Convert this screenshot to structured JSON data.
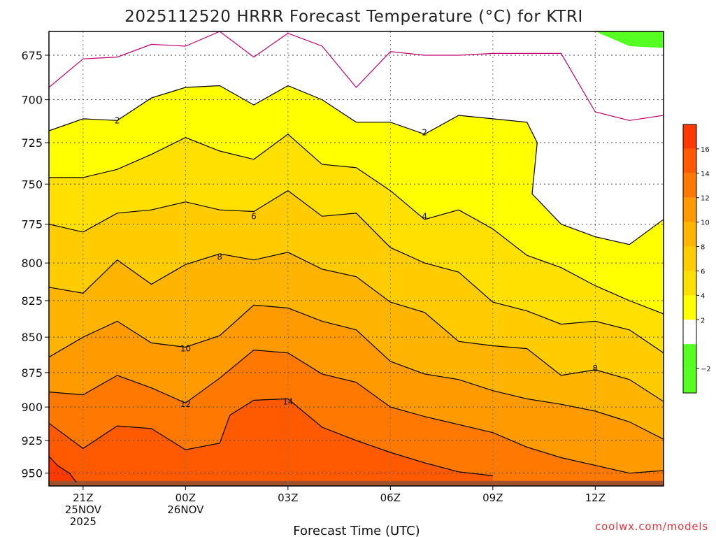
{
  "chart_data": {
    "type": "contour",
    "title": "2025112520 HRRR Forecast Temperature (°C) for KTRI",
    "xlabel": "Forecast Time (UTC)",
    "ylabel": "",
    "y_scale": "pressure",
    "ylim": [
      960,
      662
    ],
    "y_ticks": [
      675,
      700,
      725,
      750,
      775,
      800,
      825,
      850,
      875,
      900,
      925,
      950
    ],
    "y_tick_labels": [
      "675",
      "700",
      "725",
      "750",
      "775",
      "800",
      "825",
      "850",
      "875",
      "900",
      "925",
      "950"
    ],
    "x_ticks": [
      {
        "hour": 1,
        "label": [
          "21Z",
          "25NOV",
          "2025"
        ]
      },
      {
        "hour": 4,
        "label": [
          "00Z",
          "26NOV"
        ]
      },
      {
        "hour": 7,
        "label": [
          "03Z"
        ]
      },
      {
        "hour": 10,
        "label": [
          "06Z"
        ]
      },
      {
        "hour": 13,
        "label": [
          "09Z"
        ]
      },
      {
        "hour": 16,
        "label": [
          "12Z"
        ]
      }
    ],
    "xlim": [
      0,
      18
    ],
    "colorbar": {
      "bands": [
        {
          "min": -4,
          "max": -2,
          "color": "#55ff22"
        },
        {
          "min": -2,
          "max": 0,
          "color": "#55ff22"
        },
        {
          "min": 0,
          "max": 2,
          "color": "#ffffff"
        },
        {
          "min": 2,
          "max": 4,
          "color": "#ffff00"
        },
        {
          "min": 4,
          "max": 6,
          "color": "#ffe000"
        },
        {
          "min": 6,
          "max": 8,
          "color": "#ffcc00"
        },
        {
          "min": 8,
          "max": 10,
          "color": "#ffb400"
        },
        {
          "min": 10,
          "max": 12,
          "color": "#ff9a00"
        },
        {
          "min": 12,
          "max": 14,
          "color": "#ff7800"
        },
        {
          "min": 14,
          "max": 16,
          "color": "#ff5a00"
        },
        {
          "min": 16,
          "max": 18,
          "color": "#ff3a00"
        }
      ],
      "labels": [
        "−2",
        "2",
        "4",
        "6",
        "8",
        "10",
        "12",
        "14",
        "16"
      ],
      "label_values": [
        -2,
        2,
        4,
        6,
        8,
        10,
        12,
        14,
        16
      ]
    },
    "contour_labels": [
      {
        "text": "2",
        "hour": 2.0,
        "p": 712
      },
      {
        "text": "2",
        "hour": 11.0,
        "p": 719
      },
      {
        "text": "4",
        "hour": 11.0,
        "p": 770
      },
      {
        "text": "6",
        "hour": 6.0,
        "p": 770
      },
      {
        "text": "8",
        "hour": 5.0,
        "p": 796
      },
      {
        "text": "8",
        "hour": 16.0,
        "p": 872
      },
      {
        "text": "10",
        "hour": 4.0,
        "p": 858
      },
      {
        "text": "12",
        "hour": 4.0,
        "p": 898
      },
      {
        "text": "14",
        "hour": 7.0,
        "p": 896
      }
    ],
    "isotherms": [
      {
        "value": 0,
        "color": "#c00070",
        "points": [
          [
            0,
            693
          ],
          [
            1,
            677
          ],
          [
            2,
            676
          ],
          [
            3,
            669
          ],
          [
            4,
            670
          ],
          [
            5,
            662
          ],
          [
            6,
            676
          ],
          [
            7,
            663
          ],
          [
            8,
            670
          ],
          [
            9,
            693
          ],
          [
            10,
            673
          ],
          [
            11,
            675
          ],
          [
            12,
            675
          ],
          [
            13,
            674
          ],
          [
            14,
            674
          ],
          [
            15,
            674
          ],
          [
            16,
            707
          ],
          [
            17,
            712
          ],
          [
            18,
            709
          ]
        ]
      },
      {
        "value": 2,
        "color": "#000000",
        "points": [
          [
            0,
            718
          ],
          [
            1,
            711
          ],
          [
            2,
            712
          ],
          [
            3,
            699
          ],
          [
            4,
            693
          ],
          [
            5,
            692
          ],
          [
            6,
            703
          ],
          [
            7,
            692
          ],
          [
            8,
            700
          ],
          [
            9,
            713
          ],
          [
            10,
            713
          ],
          [
            11,
            720
          ],
          [
            12,
            709
          ],
          [
            13,
            711
          ],
          [
            14,
            713
          ],
          [
            14.3,
            725
          ],
          [
            14.15,
            756
          ],
          [
            15,
            775
          ],
          [
            16,
            783
          ],
          [
            17,
            788
          ],
          [
            18,
            772
          ]
        ]
      },
      {
        "value": 4,
        "color": "#000000",
        "points": [
          [
            0,
            746
          ],
          [
            1,
            746
          ],
          [
            2,
            741
          ],
          [
            3,
            732
          ],
          [
            4,
            722
          ],
          [
            5,
            730
          ],
          [
            6,
            735
          ],
          [
            7,
            720
          ],
          [
            8,
            738
          ],
          [
            9,
            740
          ],
          [
            10,
            754
          ],
          [
            11,
            772
          ],
          [
            12,
            766
          ],
          [
            13,
            778
          ],
          [
            14,
            795
          ],
          [
            15,
            803
          ],
          [
            16,
            815
          ],
          [
            17,
            825
          ],
          [
            18,
            834
          ]
        ]
      },
      {
        "value": 6,
        "color": "#000000",
        "points": [
          [
            0,
            775
          ],
          [
            1,
            780
          ],
          [
            2,
            768
          ],
          [
            3,
            766
          ],
          [
            4,
            761
          ],
          [
            5,
            766
          ],
          [
            6,
            767
          ],
          [
            7,
            754
          ],
          [
            8,
            770
          ],
          [
            9,
            768
          ],
          [
            10,
            790
          ],
          [
            11,
            800
          ],
          [
            12,
            806
          ],
          [
            13,
            826
          ],
          [
            14,
            832
          ],
          [
            15,
            841
          ],
          [
            16,
            839
          ],
          [
            17,
            845
          ],
          [
            18,
            861
          ]
        ]
      },
      {
        "value": 8,
        "color": "#000000",
        "points": [
          [
            0,
            816
          ],
          [
            1,
            820
          ],
          [
            2,
            798
          ],
          [
            3,
            814
          ],
          [
            4,
            801
          ],
          [
            5,
            794
          ],
          [
            6,
            798
          ],
          [
            7,
            793
          ],
          [
            8,
            804
          ],
          [
            9,
            809
          ],
          [
            10,
            826
          ],
          [
            11,
            833
          ],
          [
            12,
            853
          ],
          [
            13,
            856
          ],
          [
            14,
            858
          ],
          [
            15,
            877
          ],
          [
            16,
            873
          ],
          [
            17,
            880
          ],
          [
            18,
            896
          ]
        ]
      },
      {
        "value": 10,
        "color": "#000000",
        "points": [
          [
            0,
            864
          ],
          [
            1,
            850
          ],
          [
            2,
            839
          ],
          [
            3,
            854
          ],
          [
            4,
            857
          ],
          [
            5,
            849
          ],
          [
            6,
            828
          ],
          [
            7,
            830
          ],
          [
            8,
            839
          ],
          [
            9,
            845
          ],
          [
            10,
            867
          ],
          [
            11,
            876
          ],
          [
            12,
            880
          ],
          [
            13,
            888
          ],
          [
            14,
            894
          ],
          [
            15,
            898
          ],
          [
            16,
            903
          ],
          [
            17,
            911
          ],
          [
            18,
            924
          ]
        ]
      },
      {
        "value": 12,
        "color": "#000000",
        "points": [
          [
            0,
            889
          ],
          [
            1,
            891
          ],
          [
            2,
            877
          ],
          [
            3,
            886
          ],
          [
            4,
            897
          ],
          [
            5,
            879
          ],
          [
            6,
            859
          ],
          [
            7,
            861
          ],
          [
            8,
            876
          ],
          [
            9,
            882
          ],
          [
            10,
            900
          ],
          [
            11,
            907
          ],
          [
            12,
            913
          ],
          [
            13,
            919
          ],
          [
            14,
            930
          ],
          [
            15,
            938
          ],
          [
            16,
            944
          ],
          [
            17,
            950
          ],
          [
            18,
            948
          ]
        ]
      },
      {
        "value": 14,
        "color": "#000000",
        "points": [
          [
            0,
            912
          ],
          [
            1,
            931
          ],
          [
            2,
            914
          ],
          [
            3,
            916
          ],
          [
            4,
            932
          ],
          [
            5,
            927
          ],
          [
            5.3,
            906
          ],
          [
            6,
            895
          ],
          [
            7,
            894
          ],
          [
            8,
            915
          ],
          [
            9,
            925
          ],
          [
            10,
            934
          ],
          [
            11,
            942
          ],
          [
            12,
            949
          ],
          [
            13,
            952
          ]
        ]
      },
      {
        "value": 16,
        "color": "#000000",
        "points": [
          [
            0,
            937
          ],
          [
            0.25,
            944
          ],
          [
            0.6,
            950
          ],
          [
            0.8,
            957
          ]
        ]
      }
    ],
    "ground": {
      "color": "#a0522d",
      "p_top": 956
    },
    "grid": true,
    "gridlines": "dotted"
  },
  "credit": "coolwx.com/models"
}
